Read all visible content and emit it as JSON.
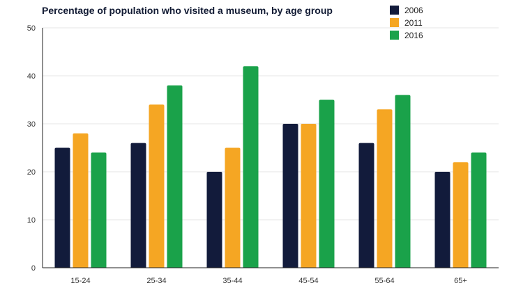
{
  "chart_data": {
    "type": "bar",
    "title": "Percentage of population who visited a museum, by age group",
    "xlabel": "",
    "ylabel": "",
    "ylim": [
      0,
      50
    ],
    "yticks": [
      0,
      10,
      20,
      30,
      40,
      50
    ],
    "grid": "horizontal",
    "legend_position": "top-right",
    "categories": [
      "15-24",
      "25-34",
      "35-44",
      "45-54",
      "55-64",
      "65+"
    ],
    "series": [
      {
        "name": "2006",
        "color": "#121b3b",
        "values": [
          25,
          26,
          20,
          30,
          26,
          20
        ]
      },
      {
        "name": "2011",
        "color": "#f5a623",
        "values": [
          28,
          34,
          25,
          30,
          33,
          22
        ]
      },
      {
        "name": "2016",
        "color": "#1aa24a",
        "values": [
          24,
          38,
          42,
          35,
          36,
          24
        ]
      }
    ]
  }
}
